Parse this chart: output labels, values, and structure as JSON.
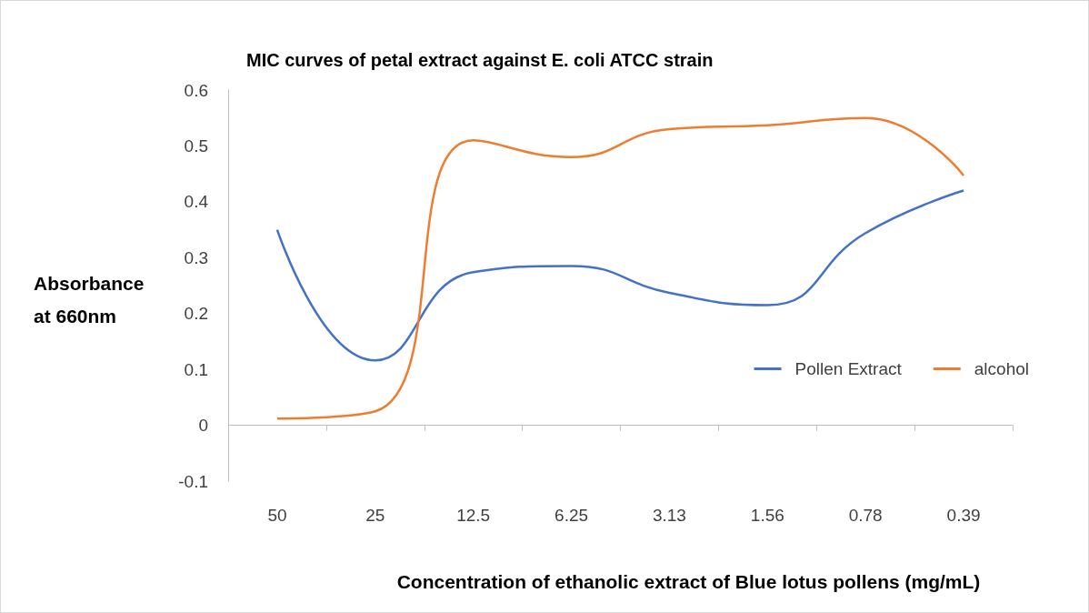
{
  "chart_data": {
    "type": "line",
    "title": "MIC curves of petal extract against E. coli ATCC strain",
    "xlabel": "Concentration of ethanolic extract of Blue lotus pollens (mg/mL)",
    "ylabel": "Absorbance\nat 660nm",
    "categories": [
      "50",
      "25",
      "12.5",
      "6.25",
      "3.13",
      "1.56",
      "0.78",
      "0.39"
    ],
    "series": [
      {
        "name": "Pollen Extract",
        "color": "#4472c4",
        "values": [
          0.35,
          0.116,
          0.274,
          0.285,
          0.237,
          0.215,
          0.344,
          0.42
        ]
      },
      {
        "name": "alcohol",
        "color": "#ed7d31",
        "values": [
          0.012,
          0.025,
          0.51,
          0.48,
          0.53,
          0.537,
          0.55,
          0.447
        ]
      }
    ],
    "ylim": [
      -0.1,
      0.6
    ],
    "yticks": [
      -0.1,
      0,
      0.1,
      0.2,
      0.3,
      0.4,
      0.5,
      0.6
    ],
    "legend": "right",
    "marker": "none",
    "line_style": "solid"
  }
}
